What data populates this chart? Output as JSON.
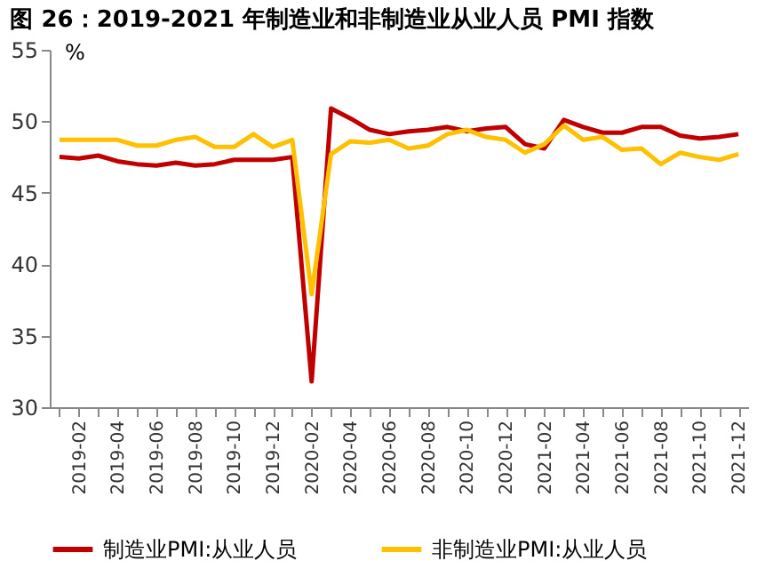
{
  "chart_data": {
    "type": "line",
    "title": "图 26：2019-2021 年制造业和非制造业从业人员 PMI 指数",
    "ylabel": "%",
    "categories": [
      null,
      "2019-02",
      null,
      "2019-04",
      null,
      "2019-06",
      null,
      "2019-08",
      null,
      "2019-10",
      null,
      "2019-12",
      null,
      "2020-02",
      null,
      "2020-04",
      null,
      "2020-06",
      null,
      "2020-08",
      null,
      "2020-10",
      null,
      "2020-12",
      null,
      "2021-02",
      null,
      "2021-04",
      null,
      "2021-06",
      null,
      "2021-08",
      null,
      "2021-10",
      null,
      "2021-12"
    ],
    "series": [
      {
        "name": "制造业PMI:从业人员",
        "color": "#c00000",
        "values": [
          47.5,
          47.4,
          47.6,
          47.2,
          47.0,
          46.9,
          47.1,
          46.9,
          47.0,
          47.3,
          47.3,
          47.3,
          47.5,
          31.8,
          50.9,
          50.2,
          49.4,
          49.1,
          49.3,
          49.4,
          49.6,
          49.3,
          49.5,
          49.6,
          48.4,
          48.1,
          50.1,
          49.6,
          49.2,
          49.2,
          49.6,
          49.6,
          49.0,
          48.8,
          48.9,
          49.1
        ]
      },
      {
        "name": "非制造业PMI:从业人员",
        "color": "#ffc000",
        "values": [
          48.7,
          48.7,
          48.7,
          48.7,
          48.3,
          48.3,
          48.7,
          48.9,
          48.2,
          48.2,
          49.1,
          48.2,
          48.7,
          37.9,
          47.7,
          48.6,
          48.5,
          48.7,
          48.1,
          48.3,
          49.1,
          49.4,
          48.9,
          48.7,
          47.8,
          48.4,
          49.7,
          48.7,
          48.9,
          48.0,
          48.1,
          47.0,
          47.8,
          47.5,
          47.3,
          47.7
        ]
      }
    ],
    "ylim": [
      30,
      55
    ],
    "yticks": [
      30,
      35,
      40,
      45,
      50,
      55
    ],
    "grid": false,
    "legend": "bottom"
  }
}
